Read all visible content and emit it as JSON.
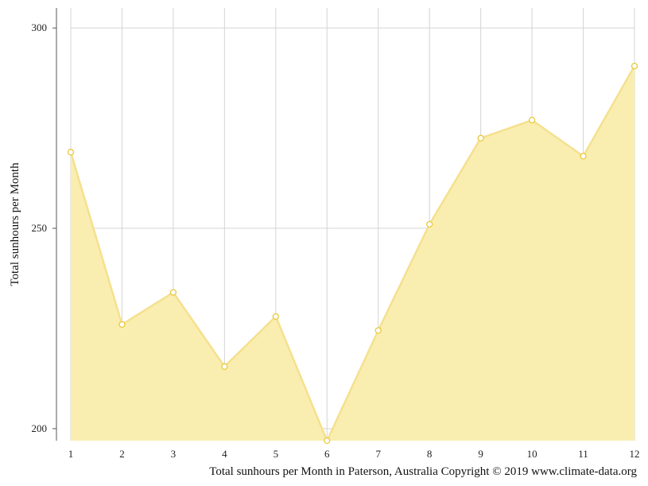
{
  "chart_data": {
    "type": "area",
    "x": [
      "1",
      "2",
      "3",
      "4",
      "5",
      "6",
      "7",
      "8",
      "9",
      "10",
      "11",
      "12"
    ],
    "values": [
      269,
      226,
      234,
      215.5,
      228,
      197,
      224.5,
      251,
      272.5,
      277,
      268,
      290.5
    ],
    "ylabel": "Total sunhours per Month",
    "xlabel": "",
    "caption": "Total sunhours per Month in Paterson, Australia Copyright © 2019 www.climate-data.org",
    "yticks": [
      "200",
      "250",
      "300"
    ],
    "ylim": [
      197,
      305
    ],
    "grid": true,
    "colors": {
      "fill": "#f9eeb0",
      "line": "#f5e08e",
      "marker_stroke": "#e8c93c",
      "grid": "#d4d4d4",
      "axis": "#555555"
    }
  }
}
